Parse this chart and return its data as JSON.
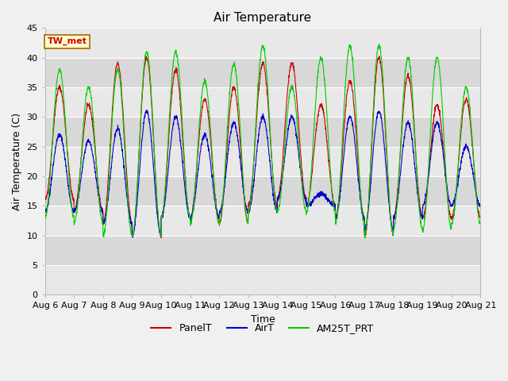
{
  "title": "Air Temperature",
  "ylabel": "Air Temperature (C)",
  "xlabel": "Time",
  "annotation": "TW_met",
  "ylim": [
    0,
    45
  ],
  "yticks": [
    0,
    5,
    10,
    15,
    20,
    25,
    30,
    35,
    40,
    45
  ],
  "xticklabels": [
    "Aug 6",
    "Aug 7",
    "Aug 8",
    "Aug 9",
    "Aug 10",
    "Aug 11",
    "Aug 12",
    "Aug 13",
    "Aug 14",
    "Aug 15",
    "Aug 16",
    "Aug 17",
    "Aug 18",
    "Aug 19",
    "Aug 20",
    "Aug 21"
  ],
  "fig_bg_color": "#f0f0f0",
  "plot_bg_color": "#ffffff",
  "stripe_colors": [
    "#e8e8e8",
    "#d8d8d8"
  ],
  "legend_entries": [
    "PanelT",
    "AirT",
    "AM25T_PRT"
  ],
  "line_colors": [
    "#cc0000",
    "#0000cc",
    "#00cc00"
  ],
  "title_fontsize": 11,
  "label_fontsize": 9,
  "tick_fontsize": 8,
  "days": 15,
  "points_per_day": 144,
  "panel_t_min": [
    16,
    14,
    12,
    10,
    13,
    13,
    12,
    15,
    16,
    15,
    13,
    10,
    13,
    13,
    13
  ],
  "panel_t_max": [
    35,
    32,
    39,
    40,
    38,
    33,
    35,
    39,
    39,
    32,
    36,
    40,
    37,
    32,
    33
  ],
  "air_t_min": [
    14,
    14,
    12,
    10,
    13,
    13,
    14,
    14,
    16,
    15,
    13,
    11,
    13,
    15,
    15
  ],
  "air_t_max": [
    27,
    26,
    28,
    31,
    30,
    27,
    29,
    30,
    30,
    17,
    30,
    31,
    29,
    29,
    25
  ],
  "am25_min": [
    13,
    12,
    10,
    10,
    13,
    12,
    12,
    14,
    14,
    14,
    12,
    10,
    11,
    11,
    12
  ],
  "am25_max": [
    38,
    35,
    38,
    41,
    41,
    36,
    39,
    42,
    35,
    40,
    42,
    42,
    40,
    40,
    35
  ]
}
